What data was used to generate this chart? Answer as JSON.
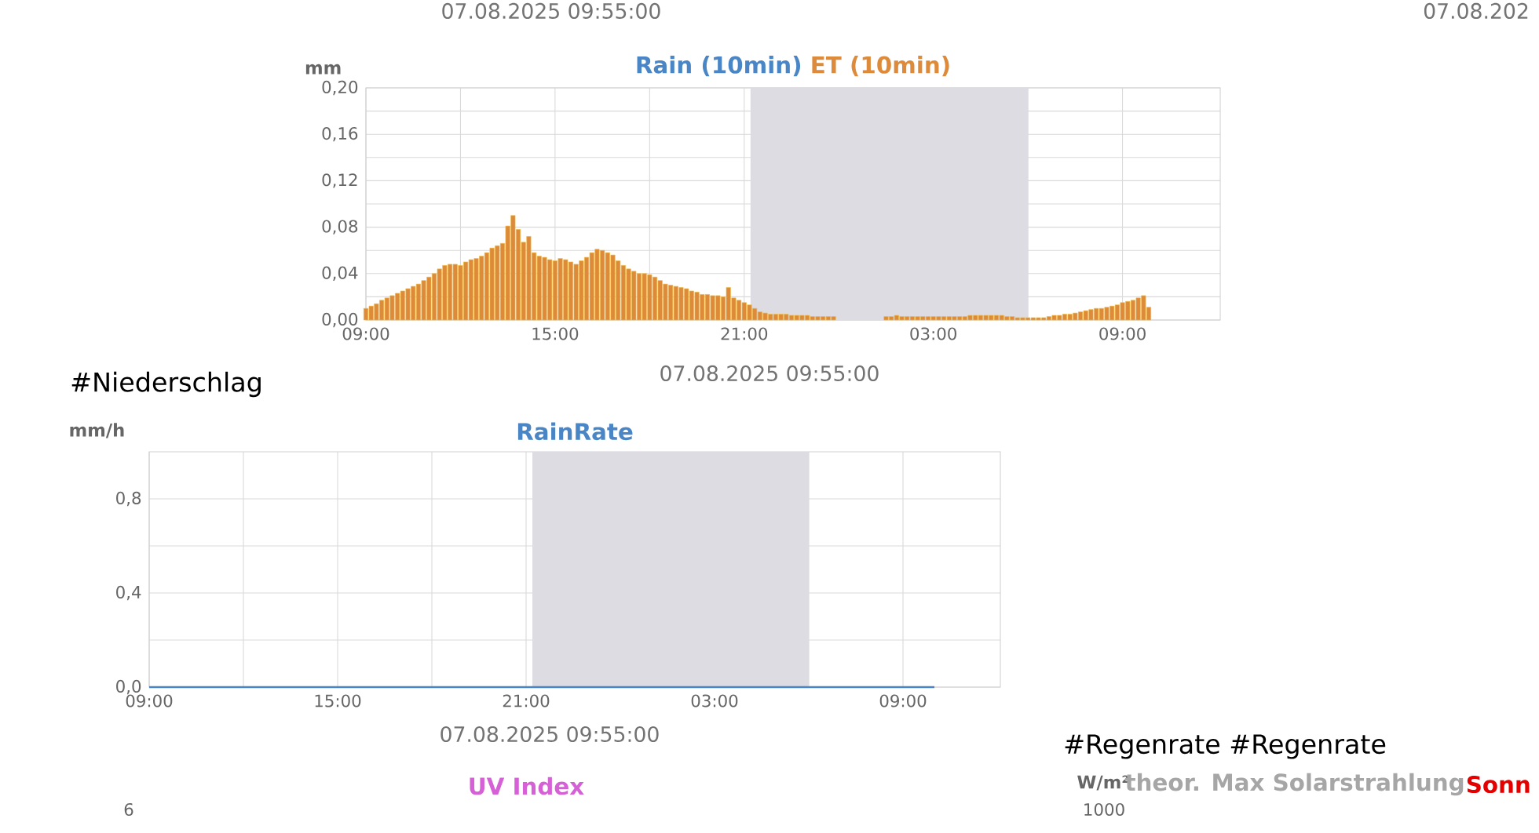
{
  "chart_data": [
    {
      "type": "bar",
      "ylabel": "mm",
      "grid": true,
      "annotations": [
        "07.08.2025 09:55:00",
        "07.08.202",
        "07.08.2025 09:55:00"
      ],
      "x": [
        "2025-08-06T09:00",
        "2025-08-06T09:10",
        "2025-08-06T09:20",
        "2025-08-06T09:30",
        "2025-08-06T09:40",
        "2025-08-06T09:50",
        "2025-08-06T10:00",
        "2025-08-06T10:10",
        "2025-08-06T10:20",
        "2025-08-06T10:30",
        "2025-08-06T10:40",
        "2025-08-06T10:50",
        "2025-08-06T11:00",
        "2025-08-06T11:10",
        "2025-08-06T11:20",
        "2025-08-06T11:30",
        "2025-08-06T11:40",
        "2025-08-06T11:50",
        "2025-08-06T12:00",
        "2025-08-06T12:10",
        "2025-08-06T12:20",
        "2025-08-06T12:30",
        "2025-08-06T12:40",
        "2025-08-06T12:50",
        "2025-08-06T13:00",
        "2025-08-06T13:10",
        "2025-08-06T13:20",
        "2025-08-06T13:30",
        "2025-08-06T13:40",
        "2025-08-06T13:50",
        "2025-08-06T14:00",
        "2025-08-06T14:10",
        "2025-08-06T14:20",
        "2025-08-06T14:30",
        "2025-08-06T14:40",
        "2025-08-06T14:50",
        "2025-08-06T15:00",
        "2025-08-06T15:10",
        "2025-08-06T15:20",
        "2025-08-06T15:30",
        "2025-08-06T15:40",
        "2025-08-06T15:50",
        "2025-08-06T16:00",
        "2025-08-06T16:10",
        "2025-08-06T16:20",
        "2025-08-06T16:30",
        "2025-08-06T16:40",
        "2025-08-06T16:50",
        "2025-08-06T17:00",
        "2025-08-06T17:10",
        "2025-08-06T17:20",
        "2025-08-06T17:30",
        "2025-08-06T17:40",
        "2025-08-06T17:50",
        "2025-08-06T18:00",
        "2025-08-06T18:10",
        "2025-08-06T18:20",
        "2025-08-06T18:30",
        "2025-08-06T18:40",
        "2025-08-06T18:50",
        "2025-08-06T19:00",
        "2025-08-06T19:10",
        "2025-08-06T19:20",
        "2025-08-06T19:30",
        "2025-08-06T19:40",
        "2025-08-06T19:50",
        "2025-08-06T20:00",
        "2025-08-06T20:10",
        "2025-08-06T20:20",
        "2025-08-06T20:30",
        "2025-08-06T20:40",
        "2025-08-06T20:50",
        "2025-08-06T21:00",
        "2025-08-06T21:10",
        "2025-08-06T21:20",
        "2025-08-06T21:30",
        "2025-08-06T21:40",
        "2025-08-06T21:50",
        "2025-08-06T22:00",
        "2025-08-06T22:10",
        "2025-08-06T22:20",
        "2025-08-06T22:30",
        "2025-08-06T22:40",
        "2025-08-06T22:50",
        "2025-08-06T23:00",
        "2025-08-06T23:10",
        "2025-08-06T23:20",
        "2025-08-06T23:30",
        "2025-08-06T23:40",
        "2025-08-06T23:50",
        "2025-08-07T00:00",
        "2025-08-07T00:10",
        "2025-08-07T00:20",
        "2025-08-07T00:30",
        "2025-08-07T00:40",
        "2025-08-07T00:50",
        "2025-08-07T01:00",
        "2025-08-07T01:10",
        "2025-08-07T01:20",
        "2025-08-07T01:30",
        "2025-08-07T01:40",
        "2025-08-07T01:50",
        "2025-08-07T02:00",
        "2025-08-07T02:10",
        "2025-08-07T02:20",
        "2025-08-07T02:30",
        "2025-08-07T02:40",
        "2025-08-07T02:50",
        "2025-08-07T03:00",
        "2025-08-07T03:10",
        "2025-08-07T03:20",
        "2025-08-07T03:30",
        "2025-08-07T03:40",
        "2025-08-07T03:50",
        "2025-08-07T04:00",
        "2025-08-07T04:10",
        "2025-08-07T04:20",
        "2025-08-07T04:30",
        "2025-08-07T04:40",
        "2025-08-07T04:50",
        "2025-08-07T05:00",
        "2025-08-07T05:10",
        "2025-08-07T05:20",
        "2025-08-07T05:30",
        "2025-08-07T05:40",
        "2025-08-07T05:50",
        "2025-08-07T06:00",
        "2025-08-07T06:10",
        "2025-08-07T06:20",
        "2025-08-07T06:30",
        "2025-08-07T06:40",
        "2025-08-07T06:50",
        "2025-08-07T07:00",
        "2025-08-07T07:10",
        "2025-08-07T07:20",
        "2025-08-07T07:30",
        "2025-08-07T07:40",
        "2025-08-07T07:50",
        "2025-08-07T08:00",
        "2025-08-07T08:10",
        "2025-08-07T08:20",
        "2025-08-07T08:30",
        "2025-08-07T08:40",
        "2025-08-07T08:50",
        "2025-08-07T09:00",
        "2025-08-07T09:10",
        "2025-08-07T09:20",
        "2025-08-07T09:30",
        "2025-08-07T09:40",
        "2025-08-07T09:50"
      ],
      "series": [
        {
          "name": "Rain (10min)",
          "color": "#4a86c5",
          "values": [
            0,
            0,
            0,
            0,
            0,
            0,
            0,
            0,
            0,
            0,
            0,
            0,
            0,
            0,
            0,
            0,
            0,
            0,
            0,
            0,
            0,
            0,
            0,
            0,
            0,
            0,
            0,
            0,
            0,
            0,
            0,
            0,
            0,
            0,
            0,
            0,
            0,
            0,
            0,
            0,
            0,
            0,
            0,
            0,
            0,
            0,
            0,
            0,
            0,
            0,
            0,
            0,
            0,
            0,
            0,
            0,
            0,
            0,
            0,
            0,
            0,
            0,
            0,
            0,
            0,
            0,
            0,
            0,
            0,
            0,
            0,
            0,
            0,
            0,
            0,
            0,
            0,
            0,
            0,
            0,
            0,
            0,
            0,
            0,
            0,
            0,
            0,
            0,
            0,
            0,
            0,
            0,
            0,
            0,
            0,
            0,
            0,
            0,
            0,
            0,
            0,
            0,
            0,
            0,
            0,
            0,
            0,
            0,
            0,
            0,
            0,
            0,
            0,
            0,
            0,
            0,
            0,
            0,
            0,
            0,
            0,
            0,
            0,
            0,
            0,
            0,
            0,
            0,
            0,
            0,
            0,
            0,
            0,
            0,
            0,
            0,
            0,
            0,
            0,
            0,
            0,
            0,
            0,
            0,
            0,
            0,
            0,
            0,
            0,
            0
          ]
        },
        {
          "name": "ET (10min)",
          "color": "#dd8a3a",
          "values": [
            0.01,
            0.012,
            0.014,
            0.017,
            0.019,
            0.021,
            0.023,
            0.025,
            0.027,
            0.029,
            0.031,
            0.034,
            0.037,
            0.04,
            0.044,
            0.047,
            0.048,
            0.048,
            0.047,
            0.05,
            0.052,
            0.053,
            0.055,
            0.058,
            0.062,
            0.064,
            0.066,
            0.081,
            0.09,
            0.078,
            0.067,
            0.072,
            0.058,
            0.055,
            0.054,
            0.052,
            0.051,
            0.053,
            0.052,
            0.05,
            0.048,
            0.051,
            0.054,
            0.058,
            0.061,
            0.06,
            0.058,
            0.056,
            0.051,
            0.047,
            0.044,
            0.042,
            0.04,
            0.04,
            0.039,
            0.037,
            0.034,
            0.031,
            0.03,
            0.029,
            0.028,
            0.027,
            0.025,
            0.024,
            0.022,
            0.022,
            0.021,
            0.021,
            0.02,
            0.028,
            0.019,
            0.017,
            0.015,
            0.013,
            0.01,
            0.007,
            0.006,
            0.005,
            0.005,
            0.005,
            0.005,
            0.004,
            0.004,
            0.004,
            0.004,
            0.003,
            0.003,
            0.003,
            0.003,
            0.003,
            0,
            0,
            0,
            0,
            0,
            0,
            0,
            0,
            0,
            0.003,
            0.003,
            0.004,
            0.003,
            0.003,
            0.003,
            0.003,
            0.003,
            0.003,
            0.003,
            0.003,
            0.003,
            0.003,
            0.003,
            0.003,
            0.003,
            0.004,
            0.004,
            0.004,
            0.004,
            0.004,
            0.004,
            0.004,
            0.003,
            0.003,
            0.002,
            0.002,
            0.002,
            0.002,
            0.002,
            0.002,
            0.003,
            0.004,
            0.004,
            0.005,
            0.005,
            0.006,
            0.007,
            0.008,
            0.009,
            0.01,
            0.01,
            0.011,
            0.012,
            0.013,
            0.015,
            0.016,
            0.017,
            0.019,
            0.021,
            0.011
          ]
        }
      ],
      "xlim": [
        "2025-08-06T09:00",
        "2025-08-07T12:06"
      ],
      "xticks": [
        {
          "value": "2025-08-06T09:00",
          "label": "09:00"
        },
        {
          "value": "2025-08-06T12:00",
          "label": null
        },
        {
          "value": "2025-08-06T15:00",
          "label": "15:00"
        },
        {
          "value": "2025-08-06T18:00",
          "label": null
        },
        {
          "value": "2025-08-06T21:00",
          "label": "21:00"
        },
        {
          "value": "2025-08-07T00:00",
          "label": null
        },
        {
          "value": "2025-08-07T03:00",
          "label": "03:00"
        },
        {
          "value": "2025-08-07T06:00",
          "label": null
        },
        {
          "value": "2025-08-07T09:00",
          "label": "09:00"
        }
      ],
      "ylim": [
        0,
        0.2
      ],
      "yticks": [
        {
          "value": 0,
          "label": "0,00"
        },
        {
          "value": 0.02,
          "label": null
        },
        {
          "value": 0.04,
          "label": "0,04"
        },
        {
          "value": 0.06,
          "label": null
        },
        {
          "value": 0.08,
          "label": "0,08"
        },
        {
          "value": 0.1,
          "label": null
        },
        {
          "value": 0.12,
          "label": "0,12"
        },
        {
          "value": 0.14,
          "label": null
        },
        {
          "value": 0.16,
          "label": "0,16"
        },
        {
          "value": 0.18,
          "label": null
        },
        {
          "value": 0.2,
          "label": "0,20"
        }
      ],
      "bands": [
        {
          "axis": "x",
          "from": "2025-08-06T21:12",
          "to": "2025-08-07T06:00",
          "color": "#dcdce2"
        }
      ]
    },
    {
      "type": "line",
      "ylabel": "mm/h",
      "grid": true,
      "annotations": [
        "#Niederschlag",
        "07.08.2025 09:55:00"
      ],
      "x": [
        "2025-08-06T09:00",
        "2025-08-07T10:00"
      ],
      "series": [
        {
          "name": "RainRate",
          "color": "#4a86c5",
          "values": [
            0,
            0
          ]
        }
      ],
      "xlim": [
        "2025-08-06T09:00",
        "2025-08-07T12:06"
      ],
      "xticks": [
        {
          "value": "2025-08-06T09:00",
          "label": "09:00"
        },
        {
          "value": "2025-08-06T12:00",
          "label": null
        },
        {
          "value": "2025-08-06T15:00",
          "label": "15:00"
        },
        {
          "value": "2025-08-06T18:00",
          "label": null
        },
        {
          "value": "2025-08-06T21:00",
          "label": "21:00"
        },
        {
          "value": "2025-08-07T00:00",
          "label": null
        },
        {
          "value": "2025-08-07T03:00",
          "label": "03:00"
        },
        {
          "value": "2025-08-07T06:00",
          "label": null
        },
        {
          "value": "2025-08-07T09:00",
          "label": "09:00"
        }
      ],
      "ylim": [
        0,
        1
      ],
      "yticks": [
        {
          "value": 0,
          "label": "0,0"
        },
        {
          "value": 0.2,
          "label": null
        },
        {
          "value": 0.4,
          "label": "0,4"
        },
        {
          "value": 0.6,
          "label": null
        },
        {
          "value": 0.8,
          "label": "0,8"
        }
      ],
      "bands": [
        {
          "axis": "x",
          "from": "2025-08-06T21:12",
          "to": "2025-08-07T06:00",
          "color": "#dcdce2"
        }
      ]
    },
    {
      "type": "other",
      "title": "UV Index",
      "annotations": [
        "6"
      ]
    },
    {
      "type": "other",
      "title": "theor. Max Solarstrahlung",
      "ylabel": "W/m²",
      "annotations": [
        "#Regenrate #Regenrate",
        "Sonn",
        "1000"
      ]
    }
  ]
}
